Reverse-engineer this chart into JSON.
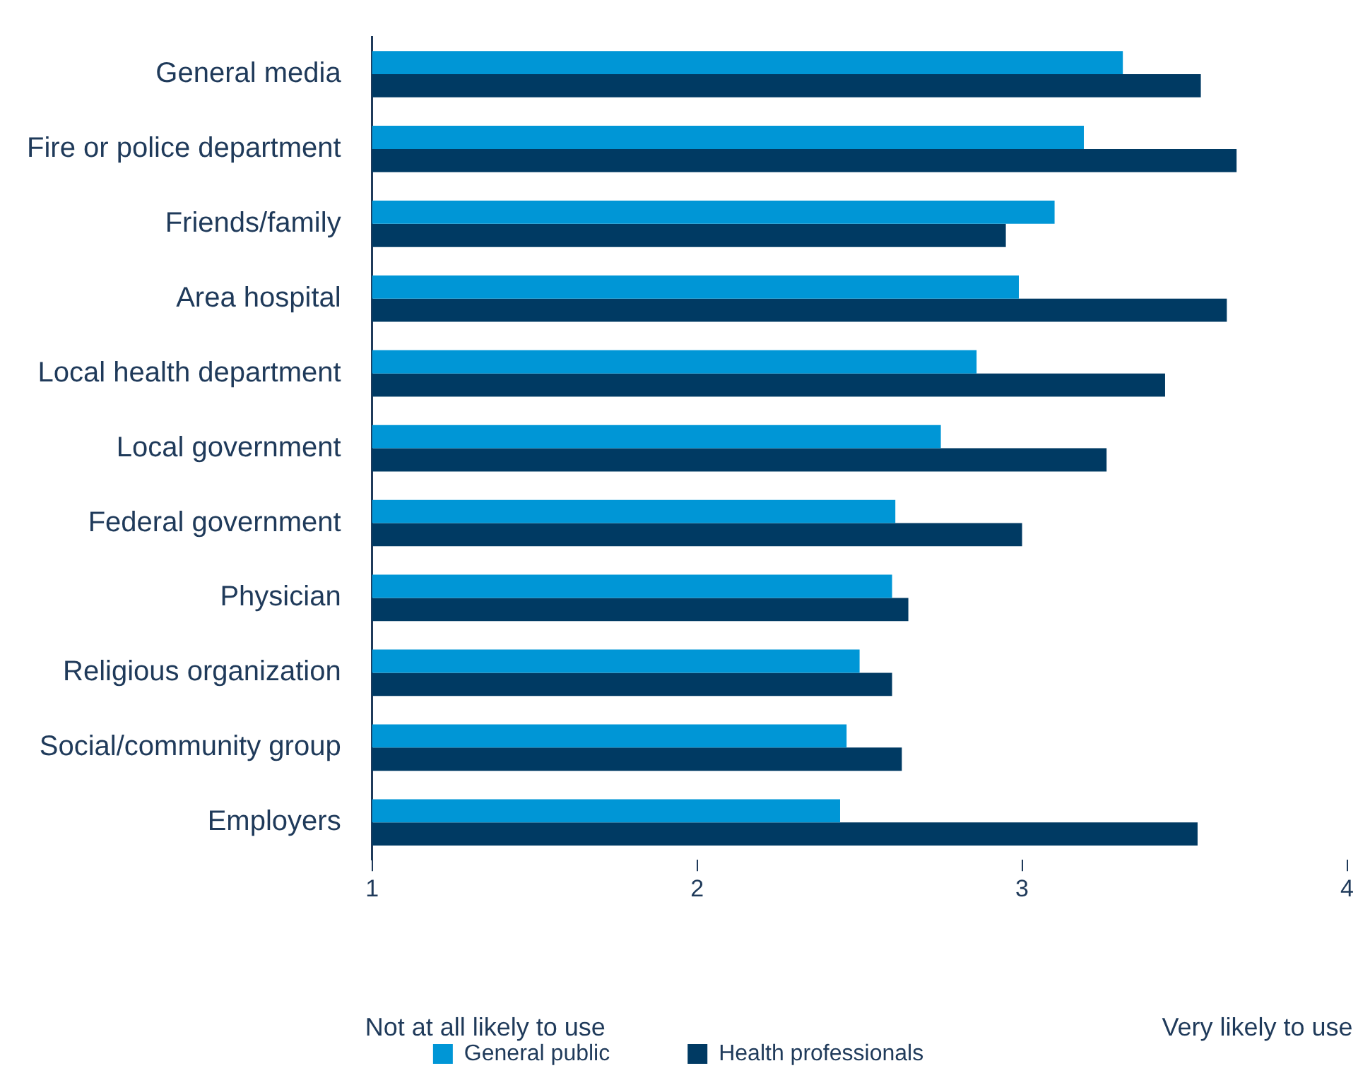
{
  "chart_data": {
    "type": "bar",
    "orientation": "horizontal",
    "categories": [
      "General media",
      "Fire or police department",
      "Friends/family",
      "Area hospital",
      "Local health department",
      "Local government",
      "Federal government",
      "Physician",
      "Religious organization",
      "Social/community group",
      "Employers"
    ],
    "series": [
      {
        "name": "General public",
        "color": "#0096d6",
        "values": [
          3.31,
          3.19,
          3.1,
          2.99,
          2.86,
          2.75,
          2.61,
          2.6,
          2.5,
          2.46,
          2.44
        ]
      },
      {
        "name": "Health professionals",
        "color": "#003a63",
        "values": [
          3.55,
          3.66,
          2.95,
          3.63,
          3.44,
          3.26,
          3.0,
          2.65,
          2.6,
          2.63,
          3.54
        ]
      }
    ],
    "xlim": [
      1,
      4
    ],
    "xticks": [
      1,
      2,
      3,
      4
    ],
    "grid": false,
    "legend": "bottom",
    "annotations": [
      "Not at all likely to use",
      "Very likely to use"
    ]
  }
}
